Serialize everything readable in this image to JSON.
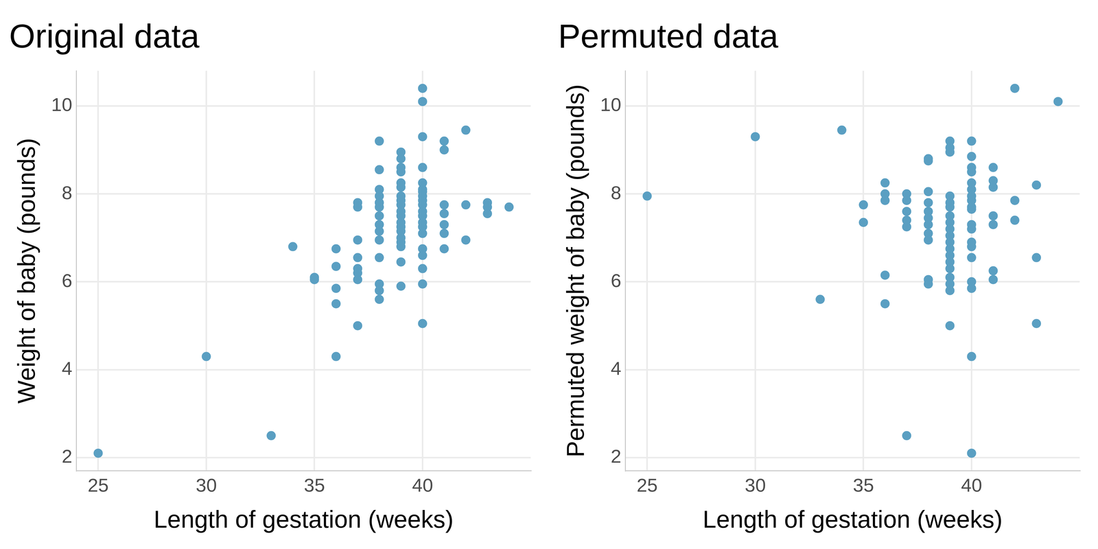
{
  "chart_data": [
    {
      "type": "scatter",
      "title": "Original data",
      "xlabel": "Length of gestation (weeks)",
      "ylabel": "Weight of baby (pounds)",
      "x": [
        25,
        30,
        33,
        34,
        35,
        35,
        36,
        36,
        36,
        36,
        36,
        37,
        37,
        37,
        37,
        37,
        37,
        37,
        37,
        38,
        38,
        38,
        38,
        38,
        38,
        38,
        38,
        38,
        38,
        38,
        38,
        38,
        38,
        39,
        39,
        39,
        39,
        39,
        39,
        39,
        39,
        39,
        39,
        39,
        39,
        39,
        39,
        39,
        39,
        39,
        39,
        39,
        40,
        40,
        40,
        40,
        40,
        40,
        40,
        40,
        40,
        40,
        40,
        40,
        40,
        40,
        40,
        40,
        40,
        40,
        40,
        40,
        41,
        41,
        41,
        41,
        41,
        41,
        41,
        42,
        42,
        42,
        43,
        43,
        43,
        44
      ],
      "values": [
        2.1,
        4.3,
        2.5,
        6.8,
        6.1,
        6.05,
        6.75,
        6.35,
        5.85,
        5.5,
        4.3,
        7.8,
        7.7,
        6.95,
        6.55,
        6.3,
        6.2,
        6.05,
        5.0,
        9.2,
        8.55,
        8.1,
        7.95,
        7.8,
        7.7,
        7.5,
        7.3,
        7.15,
        6.95,
        6.55,
        5.95,
        5.8,
        5.6,
        8.95,
        8.8,
        8.6,
        8.5,
        8.25,
        8.15,
        7.95,
        7.85,
        7.75,
        7.6,
        7.5,
        7.35,
        7.25,
        7.15,
        7.0,
        6.9,
        6.8,
        6.45,
        5.9,
        10.4,
        10.1,
        9.3,
        8.6,
        8.25,
        8.1,
        8.05,
        7.95,
        7.85,
        7.75,
        7.6,
        7.5,
        7.35,
        7.25,
        7.1,
        6.75,
        6.6,
        6.3,
        5.95,
        5.05,
        9.2,
        9.0,
        7.75,
        7.55,
        7.3,
        7.1,
        6.75,
        9.45,
        7.75,
        6.95,
        7.8,
        7.7,
        7.55,
        7.7
      ],
      "color": "#5a9fc2",
      "xlim": [
        24,
        45
      ],
      "ylim": [
        1.7,
        10.8
      ],
      "xticks": [
        25,
        30,
        35,
        40
      ],
      "yticks": [
        2,
        4,
        6,
        8,
        10
      ],
      "grid": true
    },
    {
      "type": "scatter",
      "title": "Permuted data",
      "xlabel": "Length of gestation (weeks)",
      "ylabel": "Permuted weight of baby (pounds)",
      "x": [
        25,
        30,
        33,
        34,
        35,
        35,
        36,
        36,
        36,
        36,
        36,
        37,
        37,
        37,
        37,
        37,
        37,
        38,
        38,
        38,
        38,
        38,
        38,
        38,
        38,
        38,
        38,
        38,
        39,
        39,
        39,
        39,
        39,
        39,
        39,
        39,
        39,
        39,
        39,
        39,
        39,
        39,
        39,
        39,
        39,
        39,
        39,
        40,
        40,
        40,
        40,
        40,
        40,
        40,
        40,
        40,
        40,
        40,
        40,
        40,
        40,
        40,
        40,
        40,
        40,
        40,
        41,
        41,
        41,
        41,
        41,
        41,
        41,
        42,
        42,
        42,
        43,
        43,
        43,
        44
      ],
      "values": [
        7.95,
        9.3,
        5.6,
        9.45,
        7.75,
        7.35,
        8.25,
        8.0,
        7.85,
        6.15,
        5.5,
        8.0,
        7.85,
        7.6,
        7.4,
        7.25,
        2.5,
        8.8,
        8.75,
        8.05,
        7.8,
        7.6,
        7.45,
        7.3,
        7.1,
        6.95,
        6.05,
        5.95,
        9.2,
        9.05,
        8.95,
        7.95,
        7.8,
        7.7,
        7.5,
        7.35,
        7.2,
        7.05,
        6.9,
        6.75,
        6.6,
        6.45,
        6.3,
        6.1,
        5.95,
        5.8,
        5.0,
        9.2,
        8.85,
        8.6,
        8.5,
        8.25,
        8.1,
        7.95,
        7.85,
        7.7,
        7.65,
        7.3,
        7.2,
        6.9,
        6.8,
        6.55,
        6.0,
        5.85,
        4.3,
        2.1,
        8.6,
        8.3,
        8.15,
        7.5,
        7.3,
        6.25,
        6.05,
        10.4,
        7.85,
        7.4,
        8.2,
        6.55,
        5.05,
        10.1
      ],
      "color": "#5a9fc2",
      "xlim": [
        24,
        45
      ],
      "ylim": [
        1.7,
        10.8
      ],
      "xticks": [
        25,
        30,
        35,
        40
      ],
      "yticks": [
        2,
        4,
        6,
        8,
        10
      ],
      "grid": true
    }
  ]
}
